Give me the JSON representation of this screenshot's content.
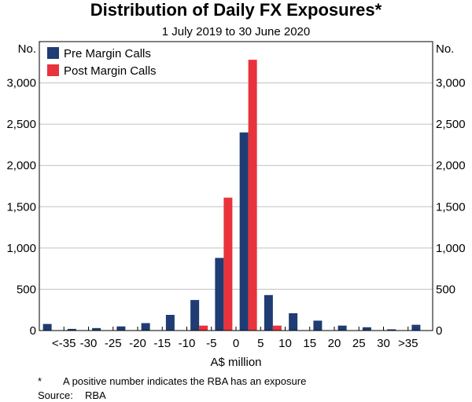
{
  "chart_data": {
    "type": "bar",
    "title": "Distribution of Daily FX Exposures*",
    "subtitle": "1 July 2019 to 30 June 2020",
    "xlabel": "A$ million",
    "ylabel_left": "No.",
    "ylabel_right": "No.",
    "ylim": [
      0,
      3500
    ],
    "yticks": [
      0,
      500,
      1000,
      1500,
      2000,
      2500,
      3000
    ],
    "ytick_labels": [
      "0",
      "500",
      "1,000",
      "1,500",
      "2,000",
      "2,500",
      "3,000"
    ],
    "xtick_labels": [
      "<-35",
      "-30",
      "-25",
      "-20",
      "-15",
      "-10",
      "-5",
      "0",
      "5",
      "10",
      "15",
      "20",
      "25",
      "30",
      ">35"
    ],
    "grid": true,
    "legend_position": "top-left",
    "series": [
      {
        "name": "Pre Margin Calls",
        "color": "#1f3c73",
        "values": [
          80,
          20,
          30,
          50,
          90,
          190,
          370,
          880,
          2400,
          430,
          210,
          120,
          60,
          40,
          15,
          70
        ]
      },
      {
        "name": "Post Margin Calls",
        "color": "#e8323c",
        "values": [
          0,
          0,
          0,
          0,
          0,
          0,
          60,
          1610,
          3280,
          60,
          0,
          0,
          0,
          0,
          0,
          0
        ]
      }
    ]
  },
  "footnote": {
    "marker": "*",
    "text": "A positive number indicates the RBA has an exposure"
  },
  "source": {
    "label": "Source:",
    "text": "RBA"
  }
}
